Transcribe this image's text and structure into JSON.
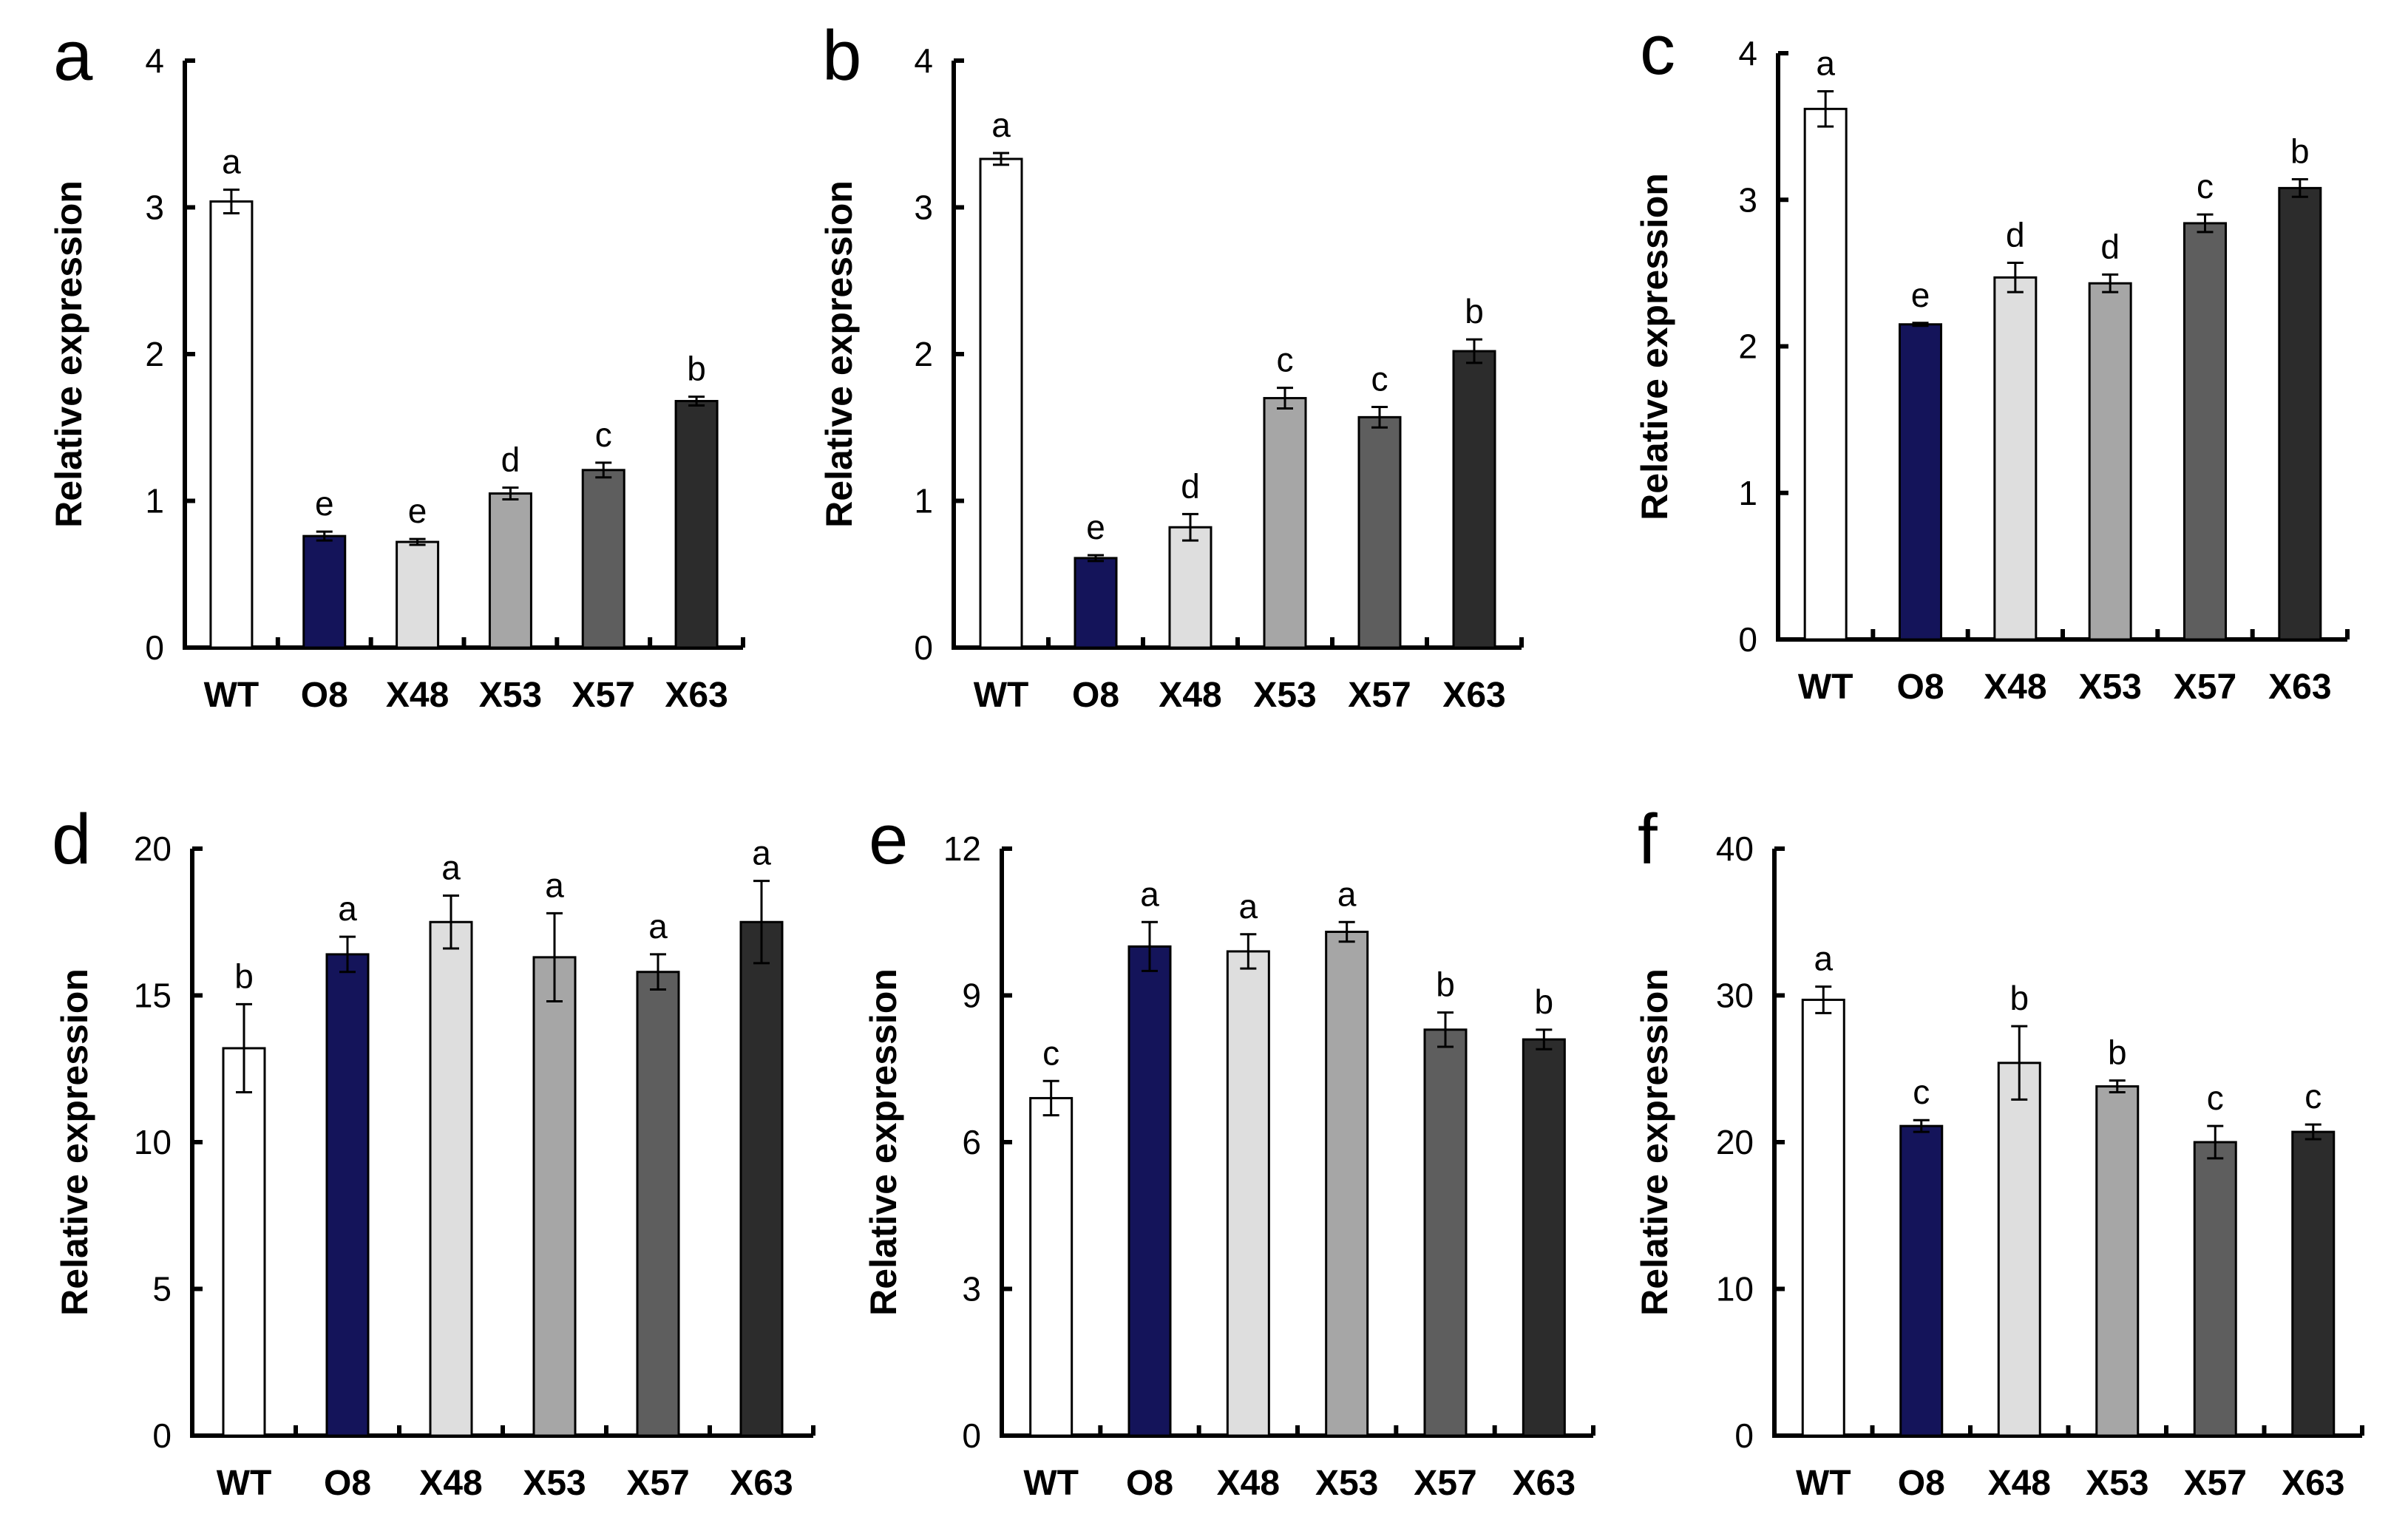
{
  "chart_data": [
    {
      "type": "bar",
      "panel_label": "a",
      "ylabel": "Relative expression",
      "categories": [
        "WT",
        "O8",
        "X48",
        "X53",
        "X57",
        "X63"
      ],
      "values": [
        3.04,
        0.76,
        0.72,
        1.05,
        1.21,
        1.68
      ],
      "errors": [
        0.08,
        0.03,
        0.02,
        0.04,
        0.05,
        0.03
      ],
      "significance": [
        "a",
        "e",
        "e",
        "d",
        "c",
        "b"
      ],
      "ylim": [
        0,
        4
      ],
      "yticks": [
        0,
        1,
        2,
        3,
        4
      ],
      "ytick_labels": [
        "0",
        "1",
        "2",
        "3",
        "4"
      ]
    },
    {
      "type": "bar",
      "panel_label": "b",
      "ylabel": "Relative expression",
      "categories": [
        "WT",
        "O8",
        "X48",
        "X53",
        "X57",
        "X63"
      ],
      "values": [
        3.33,
        0.61,
        0.82,
        1.7,
        1.57,
        2.02
      ],
      "errors": [
        0.04,
        0.02,
        0.09,
        0.07,
        0.07,
        0.08
      ],
      "significance": [
        "a",
        "e",
        "d",
        "c",
        "c",
        "b"
      ],
      "ylim": [
        0,
        4
      ],
      "yticks": [
        0,
        1,
        2,
        3,
        4
      ],
      "ytick_labels": [
        "0",
        "1",
        "2",
        "3",
        "4"
      ]
    },
    {
      "type": "bar",
      "panel_label": "c",
      "ylabel": "Relative expression",
      "categories": [
        "WT",
        "O8",
        "X48",
        "X53",
        "X57",
        "X63"
      ],
      "values": [
        3.62,
        2.15,
        2.47,
        2.43,
        2.84,
        3.08
      ],
      "errors": [
        0.12,
        0.01,
        0.1,
        0.06,
        0.06,
        0.06
      ],
      "significance": [
        "a",
        "e",
        "d",
        "d",
        "c",
        "b"
      ],
      "ylim": [
        0,
        4
      ],
      "yticks": [
        0,
        1,
        2,
        3,
        4
      ],
      "ytick_labels": [
        "0",
        "1",
        "2",
        "3",
        "4"
      ]
    },
    {
      "type": "bar",
      "panel_label": "d",
      "ylabel": "Relative expression",
      "categories": [
        "WT",
        "O8",
        "X48",
        "X53",
        "X57",
        "X63"
      ],
      "values": [
        13.2,
        16.4,
        17.5,
        16.3,
        15.8,
        17.5
      ],
      "errors": [
        1.5,
        0.6,
        0.9,
        1.5,
        0.6,
        1.4
      ],
      "significance": [
        "b",
        "a",
        "a",
        "a",
        "a",
        "a"
      ],
      "ylim": [
        0,
        20
      ],
      "yticks": [
        0,
        5,
        10,
        15,
        20
      ],
      "ytick_labels": [
        "0",
        "5",
        "10",
        "15",
        "20"
      ]
    },
    {
      "type": "bar",
      "panel_label": "e",
      "ylabel": "Relative expression",
      "categories": [
        "WT",
        "O8",
        "X48",
        "X53",
        "X57",
        "X63"
      ],
      "values": [
        6.9,
        10.0,
        9.9,
        10.3,
        8.3,
        8.1
      ],
      "errors": [
        0.35,
        0.5,
        0.35,
        0.2,
        0.35,
        0.2
      ],
      "significance": [
        "c",
        "a",
        "a",
        "a",
        "b",
        "b"
      ],
      "ylim": [
        0,
        12
      ],
      "yticks": [
        0,
        3,
        6,
        9,
        12
      ],
      "ytick_labels": [
        "0",
        "3",
        "6",
        "9",
        "12"
      ]
    },
    {
      "type": "bar",
      "panel_label": "f",
      "ylabel": "Relative expression",
      "categories": [
        "WT",
        "O8",
        "X48",
        "X53",
        "X57",
        "X63"
      ],
      "values": [
        29.7,
        21.1,
        25.4,
        23.8,
        20.0,
        20.7
      ],
      "errors": [
        0.9,
        0.4,
        2.5,
        0.4,
        1.1,
        0.5
      ],
      "significance": [
        "a",
        "c",
        "b",
        "b",
        "c",
        "c"
      ],
      "ylim": [
        0,
        40
      ],
      "yticks": [
        0,
        10,
        20,
        30,
        40
      ],
      "ytick_labels": [
        "0",
        "10",
        "20",
        "30",
        "40"
      ]
    }
  ],
  "colors": {
    "bars": [
      "#ffffff",
      "#14145a",
      "#dedede",
      "#a6a6a6",
      "#5e5e5e",
      "#2c2c2c"
    ],
    "stroke": "#000000"
  }
}
